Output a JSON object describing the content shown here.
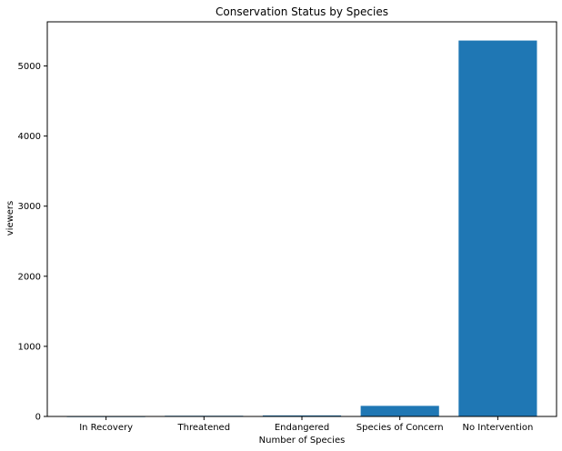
{
  "chart_data": {
    "type": "bar",
    "title": "Conservation Status by Species",
    "xlabel": "Number of Species",
    "ylabel": "viewers",
    "categories": [
      "In Recovery",
      "Threatened",
      "Endangered",
      "Species of Concern",
      "No Intervention"
    ],
    "values": [
      4,
      10,
      15,
      151,
      5363
    ],
    "ylim": [
      0,
      5630
    ],
    "yticks": [
      0,
      1000,
      2000,
      3000,
      4000,
      5000
    ],
    "bar_color": "#1f77b4",
    "grid": false,
    "legend": "none"
  }
}
